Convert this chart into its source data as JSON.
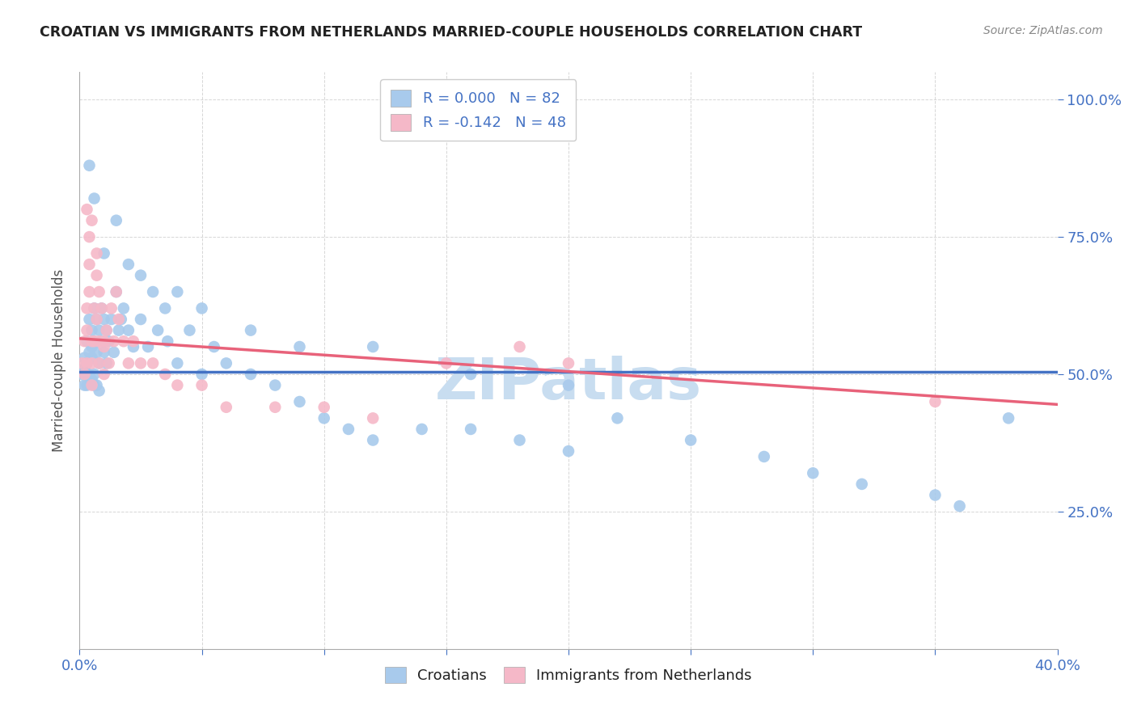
{
  "title": "CROATIAN VS IMMIGRANTS FROM NETHERLANDS MARRIED-COUPLE HOUSEHOLDS CORRELATION CHART",
  "source": "Source: ZipAtlas.com",
  "ylabel": "Married-couple Households",
  "xlim": [
    0.0,
    0.4
  ],
  "ylim": [
    0.0,
    1.05
  ],
  "yticks": [
    0.25,
    0.5,
    0.75,
    1.0
  ],
  "ytick_labels": [
    "25.0%",
    "50.0%",
    "75.0%",
    "100.0%"
  ],
  "xticks": [
    0.0,
    0.05,
    0.1,
    0.15,
    0.2,
    0.25,
    0.3,
    0.35,
    0.4
  ],
  "blue_color": "#A8CAEC",
  "pink_color": "#F5B8C8",
  "blue_line_color": "#4472C4",
  "pink_line_color": "#E8627A",
  "R_blue": 0.0,
  "N_blue": 82,
  "R_pink": -0.142,
  "N_pink": 48,
  "blue_trend_y0": 0.505,
  "blue_trend_y1": 0.505,
  "pink_trend_y0": 0.565,
  "pink_trend_y1": 0.445,
  "blue_x": [
    0.001,
    0.002,
    0.002,
    0.002,
    0.003,
    0.003,
    0.003,
    0.003,
    0.004,
    0.004,
    0.004,
    0.005,
    0.005,
    0.005,
    0.005,
    0.006,
    0.006,
    0.006,
    0.006,
    0.007,
    0.007,
    0.007,
    0.008,
    0.008,
    0.008,
    0.009,
    0.009,
    0.01,
    0.01,
    0.011,
    0.011,
    0.012,
    0.013,
    0.014,
    0.015,
    0.016,
    0.017,
    0.018,
    0.02,
    0.022,
    0.025,
    0.028,
    0.032,
    0.036,
    0.04,
    0.045,
    0.05,
    0.055,
    0.06,
    0.07,
    0.08,
    0.09,
    0.1,
    0.11,
    0.12,
    0.14,
    0.16,
    0.18,
    0.2,
    0.22,
    0.25,
    0.28,
    0.3,
    0.32,
    0.35,
    0.36,
    0.38,
    0.01,
    0.015,
    0.02,
    0.025,
    0.03,
    0.035,
    0.04,
    0.05,
    0.07,
    0.09,
    0.12,
    0.16,
    0.2,
    0.004,
    0.006
  ],
  "blue_y": [
    0.5,
    0.53,
    0.48,
    0.51,
    0.56,
    0.52,
    0.48,
    0.5,
    0.6,
    0.54,
    0.5,
    0.58,
    0.53,
    0.49,
    0.55,
    0.62,
    0.56,
    0.5,
    0.48,
    0.6,
    0.54,
    0.48,
    0.58,
    0.52,
    0.47,
    0.62,
    0.56,
    0.6,
    0.54,
    0.58,
    0.52,
    0.56,
    0.6,
    0.54,
    0.65,
    0.58,
    0.6,
    0.62,
    0.58,
    0.55,
    0.6,
    0.55,
    0.58,
    0.56,
    0.52,
    0.58,
    0.5,
    0.55,
    0.52,
    0.5,
    0.48,
    0.45,
    0.42,
    0.4,
    0.38,
    0.4,
    0.4,
    0.38,
    0.36,
    0.42,
    0.38,
    0.35,
    0.32,
    0.3,
    0.28,
    0.26,
    0.42,
    0.72,
    0.78,
    0.7,
    0.68,
    0.65,
    0.62,
    0.65,
    0.62,
    0.58,
    0.55,
    0.55,
    0.5,
    0.48,
    0.88,
    0.82
  ],
  "pink_x": [
    0.001,
    0.002,
    0.002,
    0.003,
    0.003,
    0.003,
    0.004,
    0.004,
    0.005,
    0.005,
    0.005,
    0.006,
    0.006,
    0.007,
    0.007,
    0.008,
    0.008,
    0.009,
    0.01,
    0.01,
    0.011,
    0.012,
    0.013,
    0.014,
    0.015,
    0.016,
    0.018,
    0.02,
    0.022,
    0.025,
    0.03,
    0.035,
    0.04,
    0.05,
    0.06,
    0.08,
    0.1,
    0.12,
    0.15,
    0.18,
    0.2,
    0.35,
    0.005,
    0.007,
    0.008,
    0.01,
    0.003,
    0.004
  ],
  "pink_y": [
    0.52,
    0.56,
    0.5,
    0.62,
    0.58,
    0.52,
    0.7,
    0.65,
    0.56,
    0.52,
    0.48,
    0.62,
    0.56,
    0.68,
    0.6,
    0.56,
    0.52,
    0.62,
    0.56,
    0.5,
    0.58,
    0.52,
    0.62,
    0.56,
    0.65,
    0.6,
    0.56,
    0.52,
    0.56,
    0.52,
    0.52,
    0.5,
    0.48,
    0.48,
    0.44,
    0.44,
    0.44,
    0.42,
    0.52,
    0.55,
    0.52,
    0.45,
    0.78,
    0.72,
    0.65,
    0.55,
    0.8,
    0.75
  ],
  "watermark": "ZIPatlas",
  "watermark_color": "#C8DDF0",
  "watermark_fontsize": 52
}
